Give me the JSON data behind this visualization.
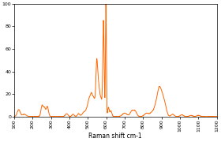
{
  "title": "",
  "xlabel": "Raman shift cm-1",
  "ylabel": "",
  "xlim": [
    100,
    1200
  ],
  "ylim": [
    0,
    100
  ],
  "yticks": [
    0,
    20,
    40,
    60,
    80,
    100
  ],
  "xticks": [
    100,
    200,
    300,
    400,
    500,
    600,
    700,
    800,
    900,
    1000,
    1100,
    1200
  ],
  "line_color": "#FF6600",
  "line_width": 0.7,
  "bg_color": "#ffffff"
}
